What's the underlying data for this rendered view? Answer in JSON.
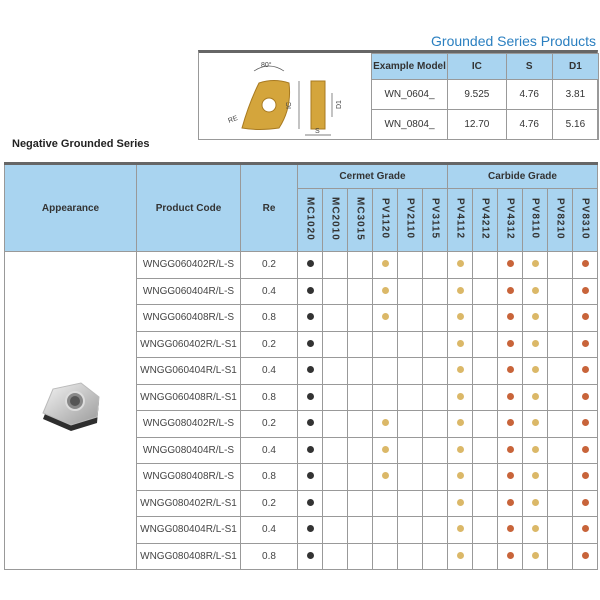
{
  "title": "Grounded Series Products",
  "section_title": "Negative Grounded Series",
  "diagram": {
    "angle": "80°",
    "re": "RE",
    "ic": "IC",
    "d1": "D1",
    "s": "S"
  },
  "spec_table": {
    "headers": [
      "Example Model",
      "IC",
      "S",
      "D1"
    ],
    "rows": [
      [
        "WN_0604_",
        "9.525",
        "4.76",
        "3.81"
      ],
      [
        "WN_0804_",
        "12.70",
        "4.76",
        "5.16"
      ]
    ]
  },
  "colors": {
    "header_bg": "#a9d4f0",
    "title": "#2a7fc0",
    "dot_black": "#333333",
    "dot_yellow": "#dbb868",
    "dot_orange": "#c8643a"
  },
  "main_table": {
    "headers": {
      "appearance": "Appearance",
      "product_code": "Product Code",
      "re": "Re",
      "cermet": "Cermet Grade",
      "carbide": "Carbide Grade"
    },
    "grades": [
      "MC1020",
      "MC2010",
      "MC3015",
      "PV1120",
      "PV2110",
      "PV3115",
      "PV4112",
      "PV4212",
      "PV4312",
      "PV8110",
      "PV8210",
      "PV8310"
    ],
    "appearance_icon": "insert-photo",
    "rows": [
      {
        "code": "WNGG060402R/L-S",
        "re": "0.2",
        "dots": [
          "black",
          "",
          "",
          "yellow",
          "",
          "",
          "yellow",
          "",
          "orange",
          "yellow",
          "",
          "orange"
        ]
      },
      {
        "code": "WNGG060404R/L-S",
        "re": "0.4",
        "dots": [
          "black",
          "",
          "",
          "yellow",
          "",
          "",
          "yellow",
          "",
          "orange",
          "yellow",
          "",
          "orange"
        ]
      },
      {
        "code": "WNGG060408R/L-S",
        "re": "0.8",
        "dots": [
          "black",
          "",
          "",
          "yellow",
          "",
          "",
          "yellow",
          "",
          "orange",
          "yellow",
          "",
          "orange"
        ]
      },
      {
        "code": "WNGG060402R/L-S1",
        "re": "0.2",
        "dots": [
          "black",
          "",
          "",
          "",
          "",
          "",
          "yellow",
          "",
          "orange",
          "yellow",
          "",
          "orange"
        ]
      },
      {
        "code": "WNGG060404R/L-S1",
        "re": "0.4",
        "dots": [
          "black",
          "",
          "",
          "",
          "",
          "",
          "yellow",
          "",
          "orange",
          "yellow",
          "",
          "orange"
        ]
      },
      {
        "code": "WNGG060408R/L-S1",
        "re": "0.8",
        "dots": [
          "black",
          "",
          "",
          "",
          "",
          "",
          "yellow",
          "",
          "orange",
          "yellow",
          "",
          "orange"
        ]
      },
      {
        "code": "WNGG080402R/L-S",
        "re": "0.2",
        "dots": [
          "black",
          "",
          "",
          "yellow",
          "",
          "",
          "yellow",
          "",
          "orange",
          "yellow",
          "",
          "orange"
        ]
      },
      {
        "code": "WNGG080404R/L-S",
        "re": "0.4",
        "dots": [
          "black",
          "",
          "",
          "yellow",
          "",
          "",
          "yellow",
          "",
          "orange",
          "yellow",
          "",
          "orange"
        ]
      },
      {
        "code": "WNGG080408R/L-S",
        "re": "0.8",
        "dots": [
          "black",
          "",
          "",
          "yellow",
          "",
          "",
          "yellow",
          "",
          "orange",
          "yellow",
          "",
          "orange"
        ]
      },
      {
        "code": "WNGG080402R/L-S1",
        "re": "0.2",
        "dots": [
          "black",
          "",
          "",
          "",
          "",
          "",
          "yellow",
          "",
          "orange",
          "yellow",
          "",
          "orange"
        ]
      },
      {
        "code": "WNGG080404R/L-S1",
        "re": "0.4",
        "dots": [
          "black",
          "",
          "",
          "",
          "",
          "",
          "yellow",
          "",
          "orange",
          "yellow",
          "",
          "orange"
        ]
      },
      {
        "code": "WNGG080408R/L-S1",
        "re": "0.8",
        "dots": [
          "black",
          "",
          "",
          "",
          "",
          "",
          "yellow",
          "",
          "orange",
          "yellow",
          "",
          "orange"
        ]
      }
    ]
  }
}
